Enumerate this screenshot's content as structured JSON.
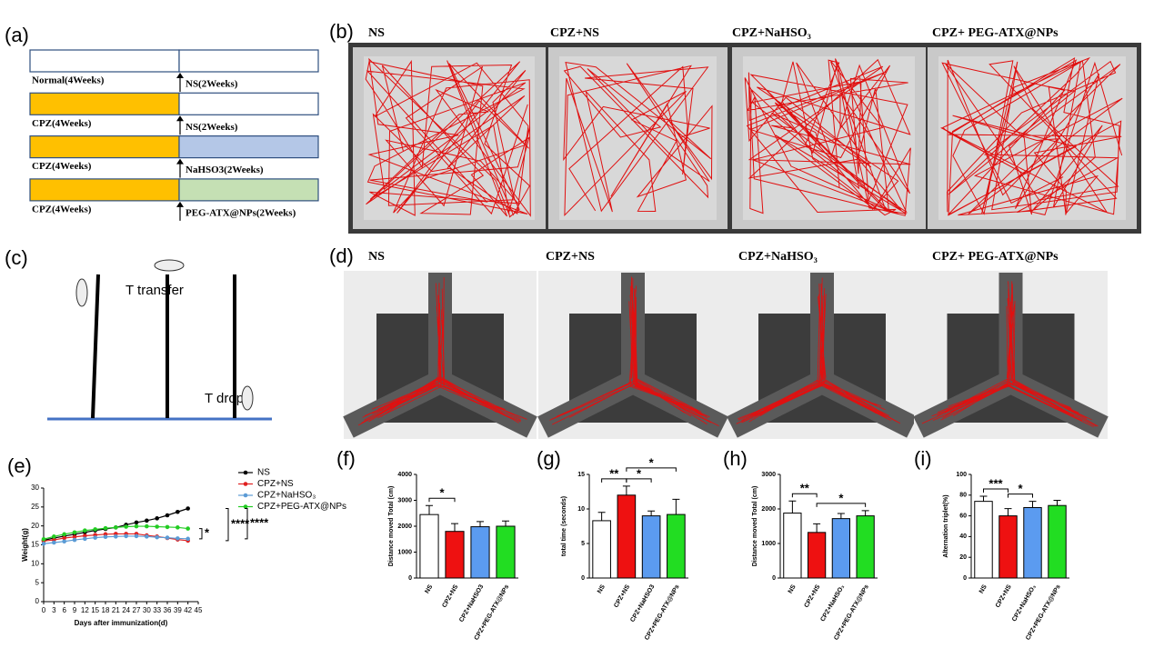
{
  "panels": {
    "a": {
      "label": "(a)",
      "rows": [
        {
          "first": "Normal(4Weeks)",
          "second": "NS(2Weeks)"
        },
        {
          "first": "CPZ(4Weeks)",
          "second": "NS(2Weeks)"
        },
        {
          "first": "CPZ(4Weeks)",
          "second": "NaHSO3(2Weeks)"
        },
        {
          "first": "CPZ(4Weeks)",
          "second": "PEG-ATX@NPs(2Weeks)"
        }
      ]
    },
    "b": {
      "label": "(b)",
      "groups": [
        "NS",
        "CPZ+NS",
        "CPZ+NaHSO₃",
        "CPZ+ PEG-ATX@NPs"
      ]
    },
    "c": {
      "label": "(c)",
      "texts": [
        "T transfer",
        "T drops"
      ]
    },
    "d": {
      "label": "(d)",
      "groups": [
        "NS",
        "CPZ+NS",
        "CPZ+NaHSO₃",
        "CPZ+ PEG-ATX@NPs"
      ]
    }
  },
  "chart_data": [
    {
      "type": "line",
      "panel_label": "(e)",
      "ylabel": "Weight(g)",
      "xlabel": "Days after immunization(d)",
      "x": [
        0,
        3,
        6,
        9,
        12,
        15,
        18,
        21,
        24,
        27,
        30,
        33,
        36,
        39,
        42
      ],
      "xlim": [
        0,
        45
      ],
      "xticks": [
        0,
        3,
        6,
        9,
        12,
        15,
        18,
        21,
        24,
        27,
        30,
        33,
        36,
        39,
        42,
        45
      ],
      "ylim": [
        0,
        30
      ],
      "yticks": [
        0,
        5,
        10,
        15,
        20,
        25,
        30
      ],
      "series": [
        {
          "name": "NS",
          "color": "#000000",
          "values": [
            16.2,
            16.8,
            17.3,
            17.8,
            18.3,
            18.8,
            19.2,
            19.6,
            20.3,
            20.9,
            21.4,
            22.0,
            22.8,
            23.7,
            24.6
          ]
        },
        {
          "name": "CPZ+NS",
          "color": "#e02020",
          "values": [
            16.0,
            16.3,
            16.8,
            17.1,
            17.4,
            17.6,
            17.8,
            17.9,
            17.9,
            17.9,
            17.5,
            17.2,
            16.8,
            16.4,
            16.1
          ]
        },
        {
          "name": "CPZ+NaHSO₃",
          "color": "#5b9bd5",
          "values": [
            15.3,
            15.6,
            15.9,
            16.3,
            16.6,
            16.9,
            17.1,
            17.2,
            17.3,
            17.3,
            17.2,
            17.0,
            16.9,
            16.7,
            16.6
          ]
        },
        {
          "name": "CPZ+PEG-ATX@NPs",
          "color": "#22cc22",
          "values": [
            16.5,
            17.2,
            17.8,
            18.3,
            18.8,
            19.1,
            19.4,
            19.6,
            19.8,
            19.9,
            19.9,
            19.8,
            19.7,
            19.6,
            19.3
          ]
        }
      ],
      "significance": [
        {
          "pair": [
            "CPZ+PEG-ATX@NPs",
            "CPZ+NaHSO₃"
          ],
          "label": "*"
        },
        {
          "pair": [
            "NS",
            "CPZ+NS"
          ],
          "label": "****"
        },
        {
          "pair": [
            "NS",
            "CPZ+NaHSO₃"
          ],
          "label": "****"
        }
      ]
    },
    {
      "type": "bar",
      "panel_label": "(f)",
      "ylabel": "Distance moved  Total (cm)",
      "categories": [
        "NS",
        "CPZ+NS",
        "CPZ+NaHSO3",
        "CPZ+PEG-ATX@NPs"
      ],
      "values": [
        2450,
        1800,
        1980,
        2000
      ],
      "errors": [
        350,
        300,
        200,
        200
      ],
      "colors": [
        "#ffffff",
        "#ee1111",
        "#5b9bf0",
        "#22dd22"
      ],
      "ylim": [
        0,
        4000
      ],
      "yticks": [
        0,
        1000,
        2000,
        3000,
        4000
      ],
      "significance": [
        {
          "pair": [
            "NS",
            "CPZ+NS"
          ],
          "label": "*"
        }
      ]
    },
    {
      "type": "bar",
      "panel_label": "(g)",
      "ylabel": "total time (seconds)",
      "categories": [
        "NS",
        "CPZ+NS",
        "CPZ+NaHSO3",
        "CPZ+PEG-ATX@NPs"
      ],
      "values": [
        8.3,
        12.0,
        9.0,
        9.2
      ],
      "errors": [
        1.2,
        1.3,
        0.7,
        2.2
      ],
      "colors": [
        "#ffffff",
        "#ee1111",
        "#5b9bf0",
        "#22dd22"
      ],
      "ylim": [
        0,
        15
      ],
      "yticks": [
        0,
        5,
        10,
        15
      ],
      "significance": [
        {
          "pair": [
            "NS",
            "CPZ+NS"
          ],
          "label": "**"
        },
        {
          "pair": [
            "CPZ+NS",
            "CPZ+NaHSO3"
          ],
          "label": "*"
        },
        {
          "pair": [
            "CPZ+NS",
            "CPZ+PEG-ATX@NPs"
          ],
          "label": "*"
        }
      ]
    },
    {
      "type": "bar",
      "panel_label": "(h)",
      "ylabel": "Distance moved Total (cm)",
      "categories": [
        "NS",
        "CPZ+NS",
        "CPZ+NaHSO₃",
        "CPZ+PEG-ATX@NPs"
      ],
      "values": [
        1880,
        1320,
        1720,
        1800
      ],
      "errors": [
        350,
        250,
        150,
        150
      ],
      "colors": [
        "#ffffff",
        "#ee1111",
        "#5b9bf0",
        "#22dd22"
      ],
      "ylim": [
        0,
        3000
      ],
      "yticks": [
        0,
        1000,
        2000,
        3000
      ],
      "significance": [
        {
          "pair": [
            "NS",
            "CPZ+NS"
          ],
          "label": "**"
        },
        {
          "pair": [
            "CPZ+NS",
            "CPZ+PEG-ATX@NPs"
          ],
          "label": "*"
        }
      ]
    },
    {
      "type": "bar",
      "panel_label": "(i)",
      "ylabel": "Alternation triplet(%)",
      "categories": [
        "NS",
        "CPZ+NS",
        "CPZ+NaHSO₃",
        "CPZ+PEG-ATX@NPs"
      ],
      "values": [
        74,
        60,
        68,
        70
      ],
      "errors": [
        5,
        7,
        6,
        5
      ],
      "colors": [
        "#ffffff",
        "#ee1111",
        "#5b9bf0",
        "#22dd22"
      ],
      "ylim": [
        0,
        100
      ],
      "yticks": [
        0,
        20,
        40,
        60,
        80,
        100
      ],
      "significance": [
        {
          "pair": [
            "NS",
            "CPZ+NS"
          ],
          "label": "***"
        },
        {
          "pair": [
            "CPZ+NS",
            "CPZ+NaHSO₃"
          ],
          "label": "*"
        }
      ]
    }
  ]
}
